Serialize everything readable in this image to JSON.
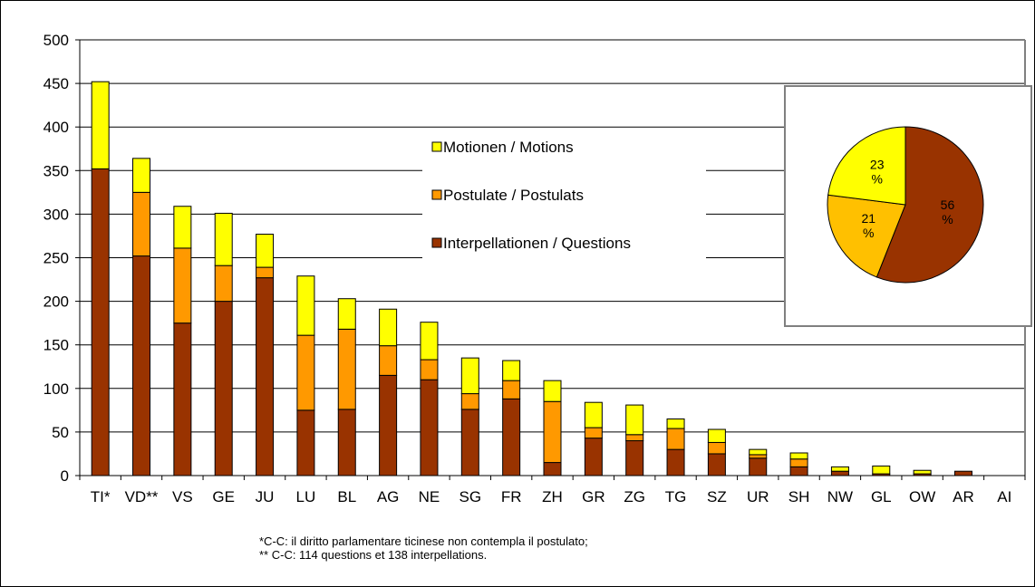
{
  "chart_data": {
    "type": "bar",
    "stacked": true,
    "categories": [
      "TI*",
      "VD**",
      "VS",
      "GE",
      "JU",
      "LU",
      "BL",
      "AG",
      "NE",
      "SG",
      "FR",
      "ZH",
      "GR",
      "ZG",
      "TG",
      "SZ",
      "UR",
      "SH",
      "NW",
      "GL",
      "OW",
      "AR",
      "AI"
    ],
    "series": [
      {
        "name": "Interpellationen / Questions",
        "color": "#993300",
        "values": [
          352,
          252,
          175,
          200,
          227,
          75,
          76,
          115,
          110,
          76,
          88,
          15,
          43,
          40,
          30,
          25,
          20,
          10,
          5,
          2,
          2,
          5,
          0
        ]
      },
      {
        "name": "Postulate / Postulats",
        "color": "#ff9900",
        "values": [
          0,
          73,
          86,
          41,
          12,
          86,
          92,
          34,
          23,
          18,
          21,
          70,
          12,
          7,
          24,
          13,
          4,
          9,
          0,
          0,
          0,
          0,
          0
        ]
      },
      {
        "name": "Motionen / Motions",
        "color": "#ffff00",
        "values": [
          100,
          39,
          48,
          60,
          38,
          68,
          35,
          42,
          43,
          41,
          23,
          24,
          29,
          34,
          11,
          15,
          6,
          7,
          5,
          9,
          4,
          0,
          0
        ]
      }
    ],
    "ylim": [
      0,
      500
    ],
    "yticks": [
      0,
      50,
      100,
      150,
      200,
      250,
      300,
      350,
      400,
      450,
      500
    ],
    "grid": true,
    "legend_position": "center",
    "inset_pie": {
      "type": "pie",
      "slices": [
        {
          "name": "Interpellationen / Questions",
          "value": 56,
          "label": "56 %",
          "color": "#993300"
        },
        {
          "name": "Postulate / Postulats",
          "value": 21,
          "label": "21 %",
          "color": "#ffc000"
        },
        {
          "name": "Motionen / Motions",
          "value": 23,
          "label": "23 %",
          "color": "#ffff00"
        }
      ]
    }
  },
  "notes": [
    "*C-C: il diritto parlamentare ticinese non contempla il postulato;",
    "** C-C: 114 questions et 138 interpellations."
  ]
}
